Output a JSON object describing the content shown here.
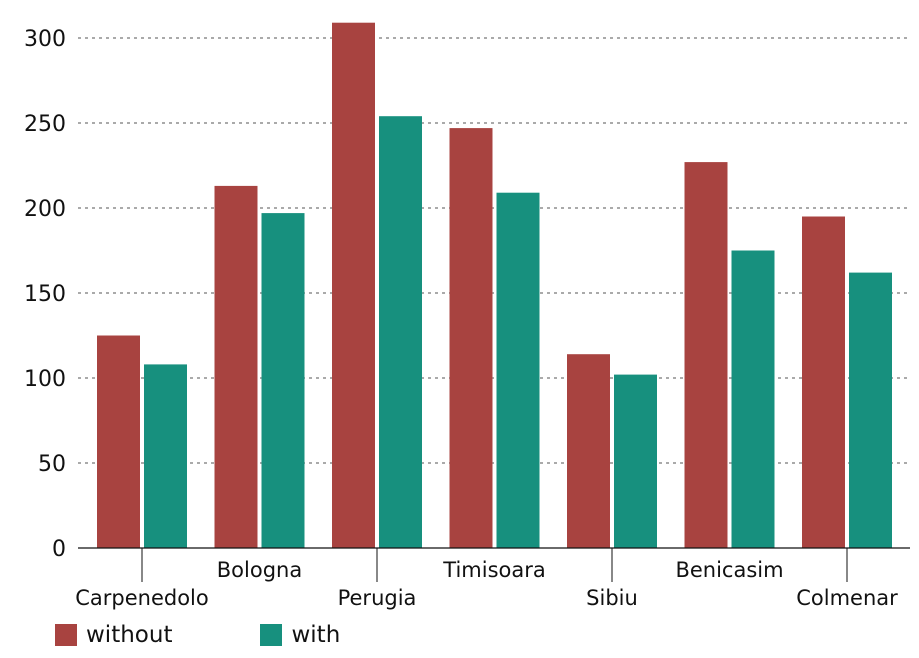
{
  "chart_data": {
    "type": "bar",
    "title": "",
    "xlabel": "",
    "ylabel": "",
    "ylim": [
      0,
      310
    ],
    "yticks": [
      0,
      50,
      100,
      150,
      200,
      250,
      300
    ],
    "grid": "horizontal dashed",
    "legend_position": "bottom-left",
    "categories": [
      "Carpenedolo",
      "Bologna",
      "Perugia",
      "Timisoara",
      "Sibiu",
      "Benicasim",
      "Colmenar"
    ],
    "series": [
      {
        "name": "without",
        "color": "#a84340",
        "values": [
          125,
          213,
          309,
          247,
          114,
          227,
          195
        ]
      },
      {
        "name": "with",
        "color": "#17907e",
        "values": [
          108,
          197,
          254,
          209,
          102,
          175,
          162
        ]
      }
    ]
  }
}
